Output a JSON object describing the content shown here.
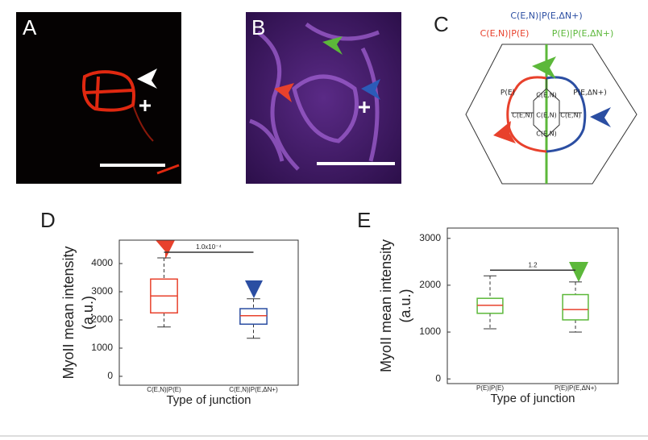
{
  "panels": [
    "A",
    "B",
    "C",
    "D",
    "E"
  ],
  "diagram": {
    "top_label": "C(E,N)|P(E,ΔN+)",
    "left_label": "C(E,N)|P(E)",
    "right_label": "P(E)|P(E,ΔN+)",
    "cell_left": "P(E)",
    "cell_right": "P(E,ΔN+)",
    "center_cells": [
      "C(E,N)",
      "C(E,N)",
      "C(E,N)",
      "C(E,N)",
      "C(E,N)"
    ]
  },
  "chart_data": [
    {
      "type": "box",
      "ylabel": [
        "MyoII mean intensity",
        "(a.u.)"
      ],
      "xlabel": "Type of junction",
      "categories": [
        "C(E,N)|P(E)",
        "C(E,N)|P(E,ΔN+)"
      ],
      "boxes": [
        {
          "low": 1750,
          "q1": 2250,
          "median": 2850,
          "q3": 3450,
          "high": 4200
        },
        {
          "low": 1350,
          "q1": 1850,
          "median": 2150,
          "q3": 2400,
          "high": 2750
        }
      ],
      "colors": [
        "#e8412c",
        "#2b4ea2"
      ],
      "median_colors": [
        "#e8412c",
        "#e8412c"
      ],
      "annotation": "1.0x10⁻⁴",
      "ylim": [
        -315,
        4830
      ],
      "yticks": [
        0,
        1000,
        2000,
        3000,
        4000
      ]
    },
    {
      "type": "box",
      "ylabel": [
        "MyoII mean intensity",
        "(a.u.)"
      ],
      "xlabel": "Type of junction",
      "categories": [
        "P(E)|P(E)",
        "P(E)|P(E,ΔN+)"
      ],
      "boxes": [
        {
          "low": 1070,
          "q1": 1400,
          "median": 1570,
          "q3": 1720,
          "high": 2200
        },
        {
          "low": 1000,
          "q1": 1260,
          "median": 1480,
          "q3": 1800,
          "high": 2070
        }
      ],
      "colors": [
        "#5cb83a",
        "#5cb83a"
      ],
      "median_colors": [
        "#e8412c",
        "#e8412c"
      ],
      "annotation": "1.2",
      "ylim": [
        -100,
        3220
      ],
      "yticks": [
        0,
        1000,
        2000,
        3000
      ]
    }
  ]
}
